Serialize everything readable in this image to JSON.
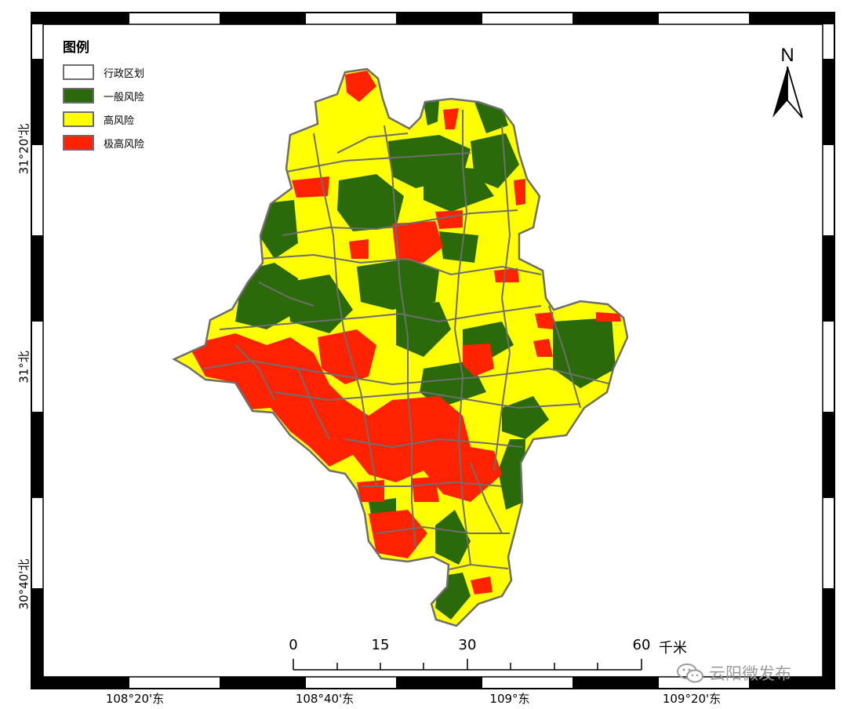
{
  "legend": {
    "title": "图例",
    "items": [
      {
        "label": "行政区划",
        "color": "#ffffff"
      },
      {
        "label": "一般风险",
        "color": "#2a6a0a"
      },
      {
        "label": "高风险",
        "color": "#ffff00"
      },
      {
        "label": "极高风险",
        "color": "#ff2200"
      }
    ]
  },
  "north_arrow": {
    "label": "N"
  },
  "axes": {
    "bottom_ticks": [
      "108°20'东",
      "108°40'东",
      "109°东",
      "109°20'东"
    ],
    "left_ticks": [
      "31°20'北",
      "31°北",
      "30°40'北"
    ]
  },
  "scale_bar": {
    "labels": [
      "0",
      "15",
      "30",
      "60"
    ],
    "unit": "千米"
  },
  "watermark": {
    "text": "云阳微发布"
  },
  "colors": {
    "boundary": "#6e6e6e",
    "low_risk": "#2a6a0a",
    "high_risk": "#ffff00",
    "very_high_risk": "#ff2200"
  }
}
